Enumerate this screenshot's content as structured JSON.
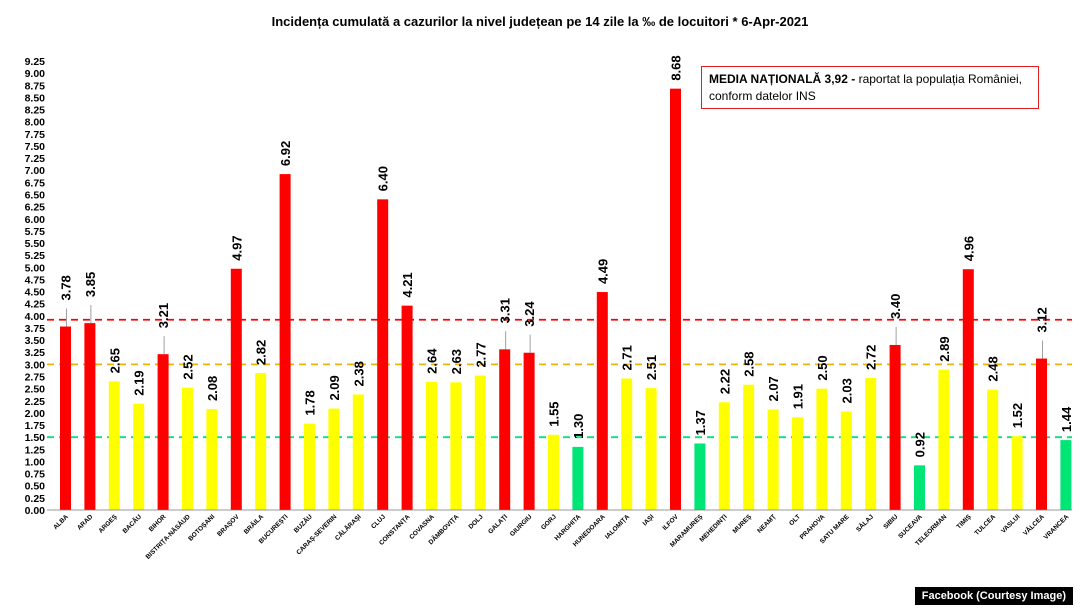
{
  "title": "Incidența cumulată a cazurilor la nivel județean pe 14 zile la ‰ de locuitori *   6-Apr-2021",
  "media_box": {
    "highlight": "MEDIA NAȚIONALĂ  3,92 -",
    "text": " raportat la populația României,",
    "line2": "conform datelor INS"
  },
  "credit": "Facebook (Courtesy Image)",
  "colors": {
    "red": "#ff0000",
    "yellow": "#ffff00",
    "green": "#00e676",
    "orange_line": "#f0b400"
  },
  "chart_data": {
    "type": "bar",
    "title": "Incidența cumulată a cazurilor la nivel județean pe 14 zile la ‰ de locuitori *   6-Apr-2021",
    "ylim": [
      0,
      9.25
    ],
    "ytick_step": 0.25,
    "grid": false,
    "categories": [
      "ALBA",
      "ARAD",
      "ARGEȘ",
      "BACĂU",
      "BIHOR",
      "BISTRIȚA-NĂSĂUD",
      "BOTOȘANI",
      "BRAȘOV",
      "BRĂILA",
      "BUCUREȘTI",
      "BUZĂU",
      "CARAȘ-SEVERIN",
      "CĂLĂRAȘI",
      "CLUJ",
      "CONSTANȚA",
      "COVASNA",
      "DÂMBOVIȚA",
      "DOLJ",
      "GALAȚI",
      "GIURGIU",
      "GORJ",
      "HARGHITA",
      "HUNEDOARA",
      "IALOMIȚA",
      "IAȘI",
      "ILFOV",
      "MARAMUREȘ",
      "MEHEDINȚI",
      "MUREȘ",
      "NEAMȚ",
      "OLT",
      "PRAHOVA",
      "SATU MARE",
      "SĂLAJ",
      "SIBIU",
      "SUCEAVA",
      "TELEORMAN",
      "TIMIȘ",
      "TULCEA",
      "VASLUI",
      "VÂLCEA",
      "VRANCEA"
    ],
    "values": [
      3.78,
      3.85,
      2.65,
      2.19,
      3.21,
      2.52,
      2.08,
      4.97,
      2.82,
      6.92,
      1.78,
      2.09,
      2.38,
      6.4,
      4.21,
      2.64,
      2.63,
      2.77,
      3.31,
      3.24,
      1.55,
      1.3,
      4.49,
      2.71,
      2.51,
      8.68,
      1.37,
      2.22,
      2.58,
      2.07,
      1.91,
      2.5,
      2.03,
      2.72,
      3.4,
      0.92,
      2.89,
      4.96,
      2.48,
      1.52,
      3.12,
      1.44
    ],
    "value_labels": [
      "3.78",
      "3.85",
      "2.65",
      "2.19",
      "3.21",
      "2.52",
      "2.08",
      "4.97",
      "2.82",
      "6.92",
      "1.78",
      "2.09",
      "2.38",
      "6.40",
      "4.21",
      "2.64",
      "2.63",
      "2.77",
      "3.31",
      "3.24",
      "1.55",
      "1.30",
      "4.49",
      "2.71",
      "2.51",
      "8.68",
      "1.37",
      "2.22",
      "2.58",
      "2.07",
      "1.91",
      "2.50",
      "2.03",
      "2.72",
      "3.40",
      "0.92",
      "2.89",
      "4.96",
      "2.48",
      "1.52",
      "3.12",
      "1.44"
    ],
    "bar_colors": [
      "red",
      "red",
      "yellow",
      "yellow",
      "red",
      "yellow",
      "yellow",
      "red",
      "yellow",
      "red",
      "yellow",
      "yellow",
      "yellow",
      "red",
      "red",
      "yellow",
      "yellow",
      "yellow",
      "red",
      "red",
      "yellow",
      "green",
      "red",
      "yellow",
      "yellow",
      "red",
      "green",
      "yellow",
      "yellow",
      "yellow",
      "yellow",
      "yellow",
      "yellow",
      "yellow",
      "red",
      "green",
      "yellow",
      "red",
      "yellow",
      "yellow",
      "red",
      "green"
    ],
    "reference_lines": [
      {
        "value": 3.92,
        "color": "red",
        "style": "dashed"
      },
      {
        "value": 3.0,
        "color": "orange",
        "style": "dashed"
      },
      {
        "value": 1.5,
        "color": "green",
        "style": "dashed"
      }
    ]
  }
}
